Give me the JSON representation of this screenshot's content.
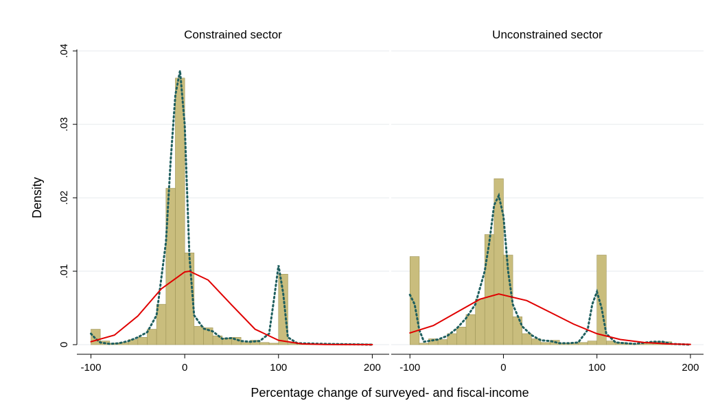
{
  "axis_titles": {
    "y": "Density",
    "x": "Percentage change of surveyed- and fiscal-income"
  },
  "chart_data": [
    {
      "type": "histogram",
      "title": "Constrained sector",
      "bins": [
        -100,
        -90,
        -80,
        -70,
        -60,
        -50,
        -40,
        -30,
        -20,
        -10,
        0,
        10,
        20,
        30,
        40,
        50,
        60,
        70,
        80,
        90,
        100,
        110,
        120,
        130,
        140,
        150,
        160,
        170,
        180,
        190,
        200
      ],
      "counts": [
        0.0021,
        0.0005,
        0.0002,
        0.0003,
        0.0007,
        0.001,
        0.0021,
        0.0055,
        0.0213,
        0.0363,
        0.0125,
        0.0025,
        0.0023,
        0.0012,
        0.0009,
        0.001,
        0.0003,
        0.0006,
        0.0003,
        0.0002,
        0.0096,
        0.0002,
        0.0001,
        0.0001,
        0.0001,
        0.0001,
        0.0001,
        0.0001,
        0.0001,
        0.0001
      ],
      "color": "#c9bd7d",
      "edgecolor": "#9e9558",
      "series": [
        {
          "style": "dotted",
          "color": "#1f5f5f",
          "x": [
            -100,
            -95,
            -90,
            -80,
            -70,
            -60,
            -50,
            -40,
            -30,
            -20,
            -15,
            -10,
            -5,
            0,
            5,
            10,
            20,
            30,
            40,
            50,
            60,
            70,
            80,
            90,
            95,
            100,
            105,
            110,
            120,
            150,
            200
          ],
          "values": [
            0.0015,
            0.0008,
            0.0003,
            0.0001,
            0.0002,
            0.0005,
            0.001,
            0.0017,
            0.004,
            0.014,
            0.025,
            0.034,
            0.0373,
            0.03,
            0.012,
            0.004,
            0.0022,
            0.0018,
            0.0008,
            0.0009,
            0.0005,
            0.0004,
            0.0005,
            0.0015,
            0.006,
            0.0108,
            0.007,
            0.001,
            0.0002,
            0.0001,
            0
          ]
        },
        {
          "style": "solid",
          "color": "#e00000",
          "x": [
            -100,
            -75,
            -50,
            -25,
            0,
            5,
            25,
            50,
            75,
            100,
            125,
            150,
            200
          ],
          "values": [
            0.0004,
            0.0013,
            0.0039,
            0.0076,
            0.0099,
            0.01,
            0.0088,
            0.0054,
            0.0021,
            0.0006,
            0.0001,
            2e-05,
            0
          ]
        }
      ],
      "xlim": [
        -115,
        218
      ],
      "xticks": [
        -100,
        0,
        100,
        200
      ],
      "ylim": [
        0,
        0.0402
      ],
      "yticks": [
        0,
        {
          "value": 0.01,
          "label": ".01"
        },
        {
          "value": 0.02,
          "label": ".02"
        },
        {
          "value": 0.03,
          "label": ".03"
        },
        {
          "value": 0.04,
          "label": ".04"
        }
      ],
      "grid": true,
      "show_yaxis": true
    },
    {
      "type": "histogram",
      "title": "Unconstrained sector",
      "bins": [
        -100,
        -90,
        -80,
        -70,
        -60,
        -50,
        -40,
        -30,
        -20,
        -10,
        0,
        10,
        20,
        30,
        40,
        50,
        60,
        70,
        80,
        90,
        100,
        110,
        120,
        130,
        140,
        150,
        160,
        170,
        180,
        190,
        200
      ],
      "counts": [
        0.012,
        0.0002,
        0.0008,
        0.0007,
        0.0015,
        0.0024,
        0.0041,
        0.0062,
        0.015,
        0.0226,
        0.0122,
        0.0038,
        0.0015,
        0.0008,
        0.0003,
        0.0006,
        0.0002,
        0.0002,
        0.0003,
        0.0005,
        0.0122,
        0.0005,
        0.0003,
        0.0002,
        0.0001,
        0.0002,
        0.0004,
        0.0004,
        0.0001,
        0.0001
      ],
      "color": "#c9bd7d",
      "edgecolor": "#9e9558",
      "series": [
        {
          "style": "dotted",
          "color": "#1f5f5f",
          "x": [
            -100,
            -95,
            -90,
            -85,
            -80,
            -70,
            -60,
            -50,
            -40,
            -30,
            -20,
            -15,
            -10,
            -5,
            0,
            5,
            10,
            20,
            30,
            40,
            50,
            60,
            70,
            80,
            90,
            95,
            100,
            105,
            110,
            120,
            140,
            160,
            170,
            180,
            200
          ],
          "values": [
            0.0068,
            0.0055,
            0.002,
            0.0004,
            0.0005,
            0.0007,
            0.0012,
            0.0022,
            0.0036,
            0.0055,
            0.01,
            0.014,
            0.019,
            0.0203,
            0.0175,
            0.01,
            0.0055,
            0.0025,
            0.0013,
            0.0006,
            0.0005,
            0.0002,
            0.0002,
            0.0003,
            0.002,
            0.0055,
            0.0072,
            0.005,
            0.0015,
            0.0003,
            0.0001,
            0.0004,
            0.0004,
            0.0001,
            0
          ]
        },
        {
          "style": "solid",
          "color": "#e00000",
          "x": [
            -100,
            -75,
            -50,
            -25,
            -5,
            25,
            50,
            75,
            100,
            125,
            150,
            175,
            200
          ],
          "values": [
            0.0016,
            0.0026,
            0.0044,
            0.0062,
            0.0069,
            0.006,
            0.0044,
            0.0028,
            0.0015,
            0.0007,
            0.0003,
            0.0001,
            4e-05
          ]
        }
      ],
      "xlim": [
        -120,
        214
      ],
      "xticks": [
        -100,
        0,
        100,
        200
      ],
      "ylim": [
        0,
        0.0402
      ],
      "yticks": [
        0,
        0.01,
        0.02,
        0.03,
        0.04
      ],
      "grid": true,
      "show_yaxis": false
    }
  ]
}
